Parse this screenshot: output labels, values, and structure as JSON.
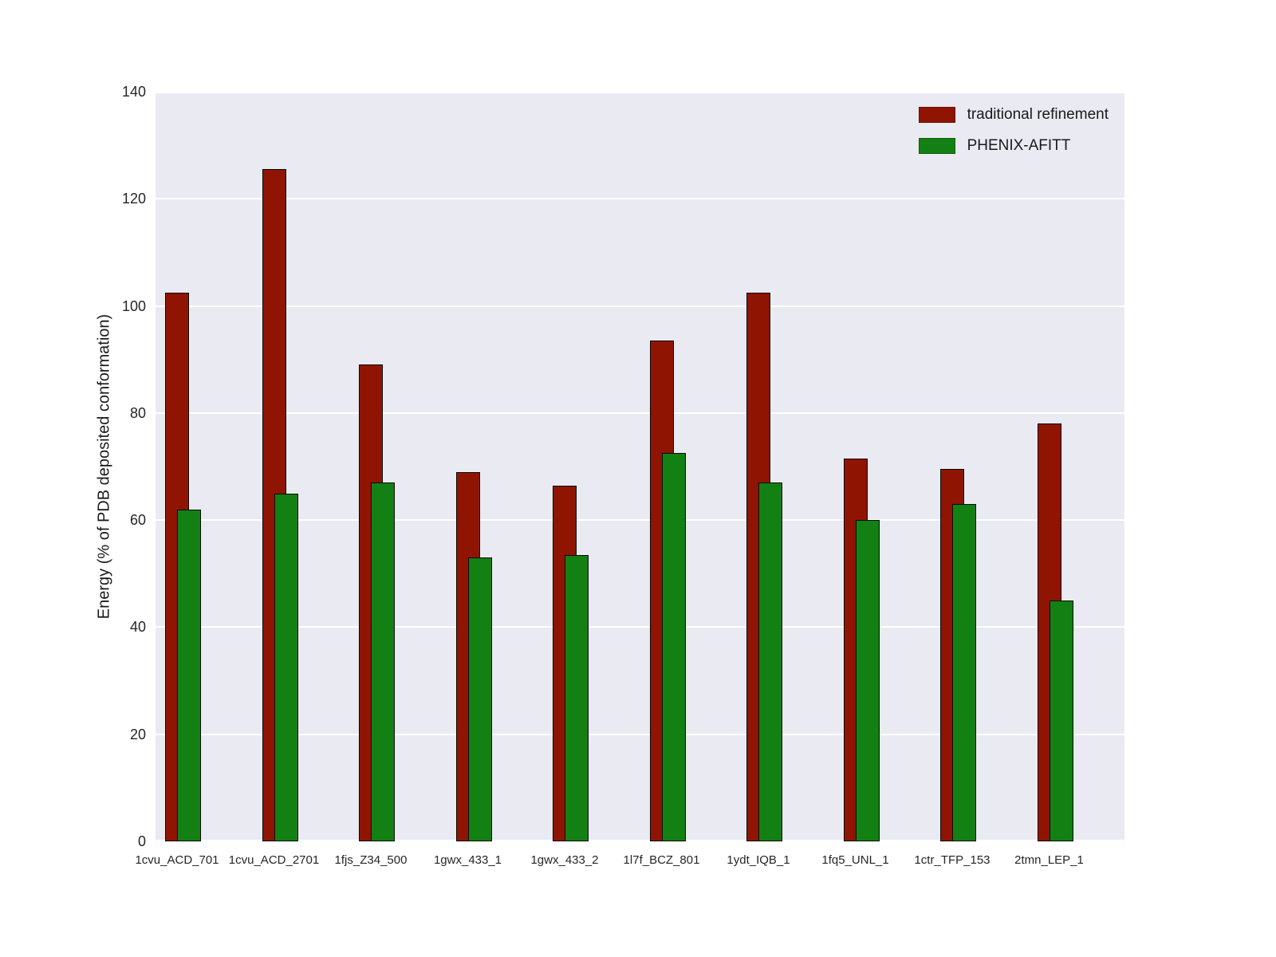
{
  "figure": {
    "background": "#ffffff"
  },
  "chart_data": {
    "type": "bar",
    "title": "",
    "xlabel": "",
    "ylabel": "Energy (% of PDB deposited conformation)",
    "categories": [
      "1cvu_ACD_701",
      "1cvu_ACD_2701",
      "1fjs_Z34_500",
      "1gwx_433_1",
      "1gwx_433_2",
      "1l7f_BCZ_801",
      "1ydt_IQB_1",
      "1fq5_UNL_1",
      "1ctr_TFP_153",
      "2tmn_LEP_1"
    ],
    "series": [
      {
        "name": "traditional refinement",
        "color": "#8f1402",
        "values": [
          102.5,
          125.5,
          89,
          69,
          66.5,
          93.5,
          102.5,
          71.5,
          69.5,
          78
        ]
      },
      {
        "name": "PHENIX-AFITT",
        "color": "#138013",
        "values": [
          62,
          65,
          67,
          53,
          53.5,
          72.5,
          67,
          60,
          63,
          45
        ]
      }
    ],
    "ylim": [
      0,
      140
    ],
    "yticks": [
      0,
      20,
      40,
      60,
      80,
      100,
      120,
      140
    ],
    "grid": true,
    "grid_color": "#ffffff",
    "plot_background": "#eaeaf2",
    "bar_edge_color": "#0a0a0a",
    "tick_color": "#262626",
    "legend_position": "upper right"
  }
}
